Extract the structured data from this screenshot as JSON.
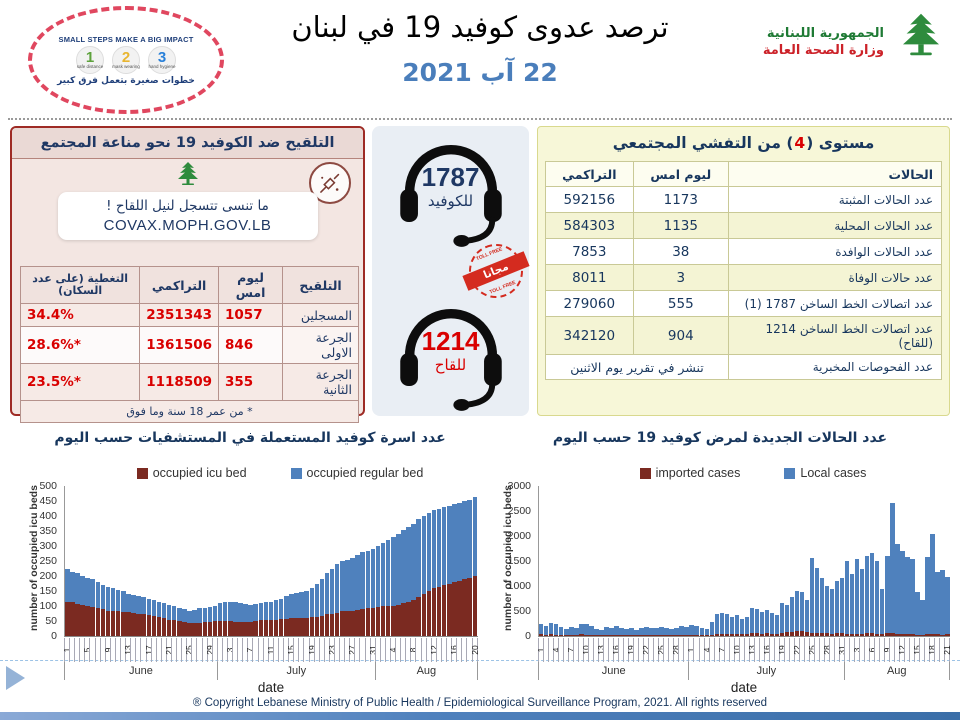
{
  "header": {
    "campaign": {
      "tagline": "SMALL STEPS MAKE A BIG IMPACT",
      "steps": [
        "1",
        "2",
        "3"
      ],
      "step_labels": [
        "safe distance",
        "mask wearing",
        "hand hygiene"
      ],
      "arabic_tagline": "خطوات صغيرة بتعمل فرق كبير"
    },
    "title": "ترصد عدوى كوفيد 19 في لبنان",
    "date": "22 آب 2021",
    "moph": {
      "line1": "الجمهورية اللبنانية",
      "line2": "وزارة الصحة العامة"
    }
  },
  "vaccination": {
    "title": "التلقيح ضد الكوفيد 19  نحو مناعة المجتمع",
    "reminder": "ما تنسى تتسجل لنيل اللقاح !",
    "url": "COVAX.MOPH.GOV.LB",
    "headers": [
      "التلقيح",
      "ليوم امس",
      "التراكمي",
      "التغطية (على عدد السكان)"
    ],
    "rows": [
      [
        "المسجلين",
        "1057",
        "2351343",
        "34.4%"
      ],
      [
        "الجرعة الاولى",
        "846",
        "1361506",
        "*28.6%"
      ],
      [
        "الجرعة الثانية",
        "355",
        "1118509",
        "*23.5%"
      ]
    ],
    "footnote": "* من عمر 18 سنة وما فوق"
  },
  "hotlines": {
    "covid_number": "1787",
    "covid_label": "للكوفيد",
    "vaccine_number": "1214",
    "vaccine_label": "للقاح",
    "stamp_text": "مجانا",
    "stamp_ring": "TOLL FREE"
  },
  "outbreak": {
    "title_pre": "مستوى (",
    "level": "4",
    "title_post": ") من التفشي المجتمعي",
    "headers": [
      "الحالات",
      "ليوم امس",
      "التراكمي"
    ],
    "rows": [
      [
        "عدد الحالات المثبتة",
        "1173",
        "592156"
      ],
      [
        "عدد الحالات المحلية",
        "1135",
        "584303"
      ],
      [
        "عدد الحالات الوافدة",
        "38",
        "7853"
      ],
      [
        "عدد حالات الوفاة",
        "3",
        "8011"
      ],
      [
        "عدد اتصالات الخط الساخن 1787  (1)",
        "555",
        "279060"
      ],
      [
        "عدد اتصالات الخط الساخن 1214 (للقاح)",
        "904",
        "342120"
      ]
    ],
    "labs_label": "عدد الفحوصات المخبرية",
    "labs_value": "تنشر في تقرير يوم الاثنين"
  },
  "section_titles": {
    "beds": "عدد اسرة كوفيد المستعملة في المستشفيات حسب اليوم",
    "cases": "عدد الحالات الجديدة لمرض كوفيد 19 حسب اليوم"
  },
  "chart_data": [
    {
      "type": "bar",
      "stacked": true,
      "title": "عدد اسرة كوفيد المستعملة في المستشفيات حسب اليوم",
      "xlabel": "date",
      "ylabel": "number of occupied icu beds",
      "ylim": [
        0,
        500
      ],
      "ytick_step": 50,
      "tick_step": 4,
      "tick_labels": [
        "1",
        "5",
        "9",
        "13",
        "17",
        "21",
        "25",
        "29",
        "3",
        "7",
        "11",
        "15",
        "19",
        "23",
        "27",
        "31",
        "4",
        "8",
        "12",
        "16",
        "20"
      ],
      "legend_position": "top",
      "month_groups": [
        {
          "label": "June",
          "days": 30
        },
        {
          "label": "July",
          "days": 31
        },
        {
          "label": "Aug",
          "days": 20
        }
      ],
      "series": [
        {
          "name": "occupied icu bed",
          "color": "#7b2a21",
          "values": [
            115,
            112,
            108,
            105,
            100,
            97,
            93,
            90,
            85,
            82,
            82,
            80,
            80,
            78,
            75,
            72,
            70,
            68,
            65,
            60,
            55,
            52,
            50,
            48,
            45,
            42,
            44,
            46,
            48,
            50,
            50,
            50,
            50,
            48,
            48,
            48,
            48,
            50,
            52,
            53,
            55,
            55,
            57,
            58,
            60,
            60,
            60,
            60,
            62,
            65,
            68,
            72,
            75,
            78,
            82,
            85,
            85,
            88,
            90,
            92,
            95,
            98,
            100,
            100,
            100,
            105,
            110,
            115,
            120,
            130,
            140,
            150,
            160,
            165,
            170,
            175,
            180,
            185,
            190,
            195,
            200
          ]
        },
        {
          "name": "occupied regular bed",
          "color": "#4f81bd",
          "values": [
            110,
            103,
            102,
            95,
            95,
            93,
            87,
            80,
            80,
            78,
            73,
            70,
            60,
            60,
            60,
            58,
            55,
            52,
            50,
            50,
            50,
            48,
            45,
            42,
            40,
            46,
            48,
            49,
            50,
            50,
            60,
            62,
            65,
            64,
            62,
            60,
            57,
            58,
            58,
            59,
            60,
            65,
            68,
            77,
            80,
            85,
            88,
            90,
            98,
            110,
            122,
            138,
            150,
            162,
            168,
            170,
            175,
            182,
            190,
            193,
            195,
            202,
            210,
            220,
            230,
            235,
            245,
            250,
            255,
            260,
            260,
            260,
            260,
            260,
            260,
            260,
            260,
            260,
            260,
            260,
            262
          ]
        }
      ]
    },
    {
      "type": "bar",
      "stacked": true,
      "title": "عدد الحالات الجديدة لمرض كوفيد 19 حسب اليوم",
      "xlabel": "date",
      "ylabel": "number of occupied icu beds",
      "ylim": [
        0,
        3000
      ],
      "ytick_step": 500,
      "tick_step": 3,
      "tick_labels": [
        "1",
        "4",
        "7",
        "10",
        "13",
        "16",
        "19",
        "22",
        "25",
        "28",
        "1",
        "4",
        "7",
        "10",
        "13",
        "16",
        "19",
        "22",
        "25",
        "28",
        "31",
        "3",
        "6",
        "9",
        "12",
        "15",
        "18",
        "21"
      ],
      "legend_position": "top",
      "month_groups": [
        {
          "label": "June",
          "days": 30
        },
        {
          "label": "July",
          "days": 31
        },
        {
          "label": "Aug",
          "days": 21
        }
      ],
      "series": [
        {
          "name": "imported cases",
          "color": "#7b2a21",
          "values": [
            40,
            30,
            35,
            30,
            25,
            20,
            30,
            25,
            35,
            30,
            25,
            20,
            15,
            25,
            20,
            25,
            20,
            15,
            20,
            15,
            20,
            25,
            20,
            20,
            25,
            20,
            15,
            20,
            25,
            20,
            30,
            25,
            20,
            20,
            30,
            40,
            45,
            40,
            35,
            40,
            50,
            45,
            60,
            55,
            50,
            55,
            50,
            45,
            70,
            80,
            90,
            100,
            95,
            80,
            70,
            65,
            60,
            55,
            50,
            55,
            60,
            50,
            45,
            50,
            45,
            55,
            60,
            50,
            40,
            55,
            60,
            50,
            45,
            40,
            40,
            30,
            25,
            40,
            45,
            35,
            30,
            35
          ]
        },
        {
          "name": "Local cases",
          "color": "#4f81bd",
          "values": [
            200,
            180,
            220,
            210,
            150,
            120,
            160,
            140,
            200,
            220,
            180,
            120,
            100,
            160,
            150,
            170,
            150,
            120,
            140,
            100,
            150,
            160,
            150,
            140,
            160,
            140,
            120,
            150,
            180,
            160,
            200,
            180,
            150,
            130,
            250,
            400,
            420,
            400,
            350,
            380,
            300,
            330,
            500,
            480,
            430,
            470,
            420,
            380,
            600,
            550,
            700,
            800,
            780,
            650,
            1500,
            1300,
            1100,
            950,
            900,
            1050,
            1100,
            1450,
            1200,
            1500,
            1300,
            1550,
            1600,
            1450,
            900,
            1550,
            2600,
            1800,
            1650,
            1550,
            1500,
            850,
            700,
            1550,
            2000,
            1250,
            1300,
            1150
          ]
        }
      ]
    }
  ],
  "footer": "® Copyright Lebanese Ministry of Public Health / Epidemiological Surveillance Program, 2021. All rights reserved",
  "colors": {
    "accent_blue": "#4f81bd",
    "navy": "#17365d",
    "number_red": "#d90000",
    "bar_maroon": "#7b2a21",
    "panel_pink": "#f3e6e2",
    "panel_yellow": "#f7f7d8",
    "panel_gray": "#e9eef4",
    "cedar_green": "#2e8b3d",
    "moph_red": "#cc2229"
  }
}
